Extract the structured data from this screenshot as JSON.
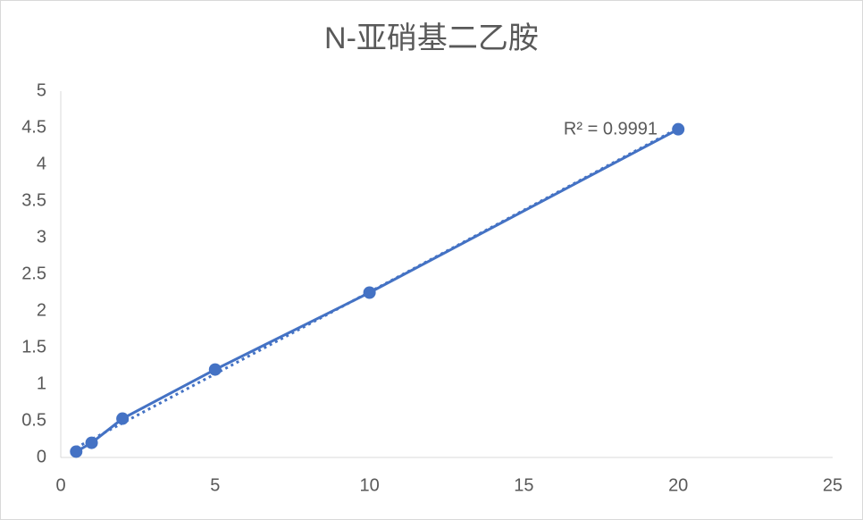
{
  "chart_data": {
    "type": "scatter",
    "title": "N-亚硝基二乙胺",
    "series": [
      {
        "name": "N-亚硝基二乙胺",
        "color": "#4472c4",
        "x": [
          0.5,
          1,
          2,
          5,
          10,
          20
        ],
        "values": [
          0.08,
          0.2,
          0.53,
          1.2,
          2.25,
          4.48
        ]
      }
    ],
    "trendline": "linear",
    "annotation": "R² = 0.9991",
    "xlim": [
      0,
      25
    ],
    "xticks": [
      0,
      5,
      10,
      15,
      20,
      25
    ],
    "ylim": [
      0,
      5
    ],
    "yticks": [
      0,
      0.5,
      1,
      1.5,
      2,
      2.5,
      3,
      3.5,
      4,
      4.5,
      5
    ],
    "grid": false
  }
}
